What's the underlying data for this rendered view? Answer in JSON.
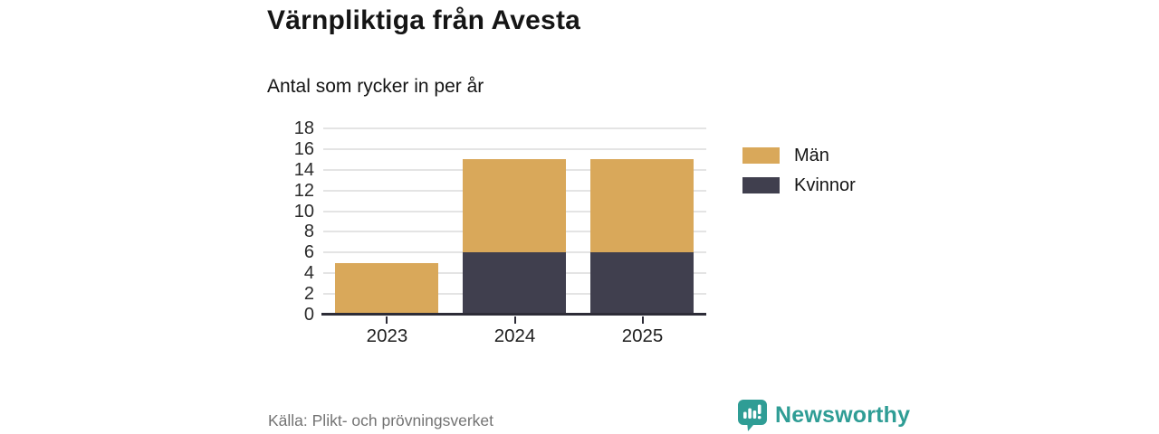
{
  "header": {
    "title": "Värnpliktiga från Avesta",
    "subtitle": "Antal som rycker in per år"
  },
  "chart_data": {
    "type": "bar",
    "stacked": true,
    "title": "Värnpliktiga från Avesta",
    "subtitle": "Antal som rycker in per år",
    "categories": [
      "2023",
      "2024",
      "2025"
    ],
    "series": [
      {
        "name": "Män",
        "color": "#D9A85A",
        "values": [
          5,
          9,
          9
        ]
      },
      {
        "name": "Kvinnor",
        "color": "#403F4E",
        "values": [
          0,
          6,
          6
        ]
      }
    ],
    "stack_order_bottom_to_top": [
      "Kvinnor",
      "Män"
    ],
    "totals": [
      5,
      15,
      15
    ],
    "xlabel": "",
    "ylabel": "",
    "ylim": [
      0,
      18
    ],
    "ytick_step": 2,
    "grid": "horizontal",
    "legend_position": "right"
  },
  "footer": {
    "source": "Källa: Plikt- och prövningsverket",
    "brand": "Newsworthy"
  },
  "colors": {
    "men": "#D9A85A",
    "women": "#403F4E",
    "brand_teal": "#2F9D95",
    "grid": "#E4E4E4",
    "axis": "#2D2C37"
  }
}
